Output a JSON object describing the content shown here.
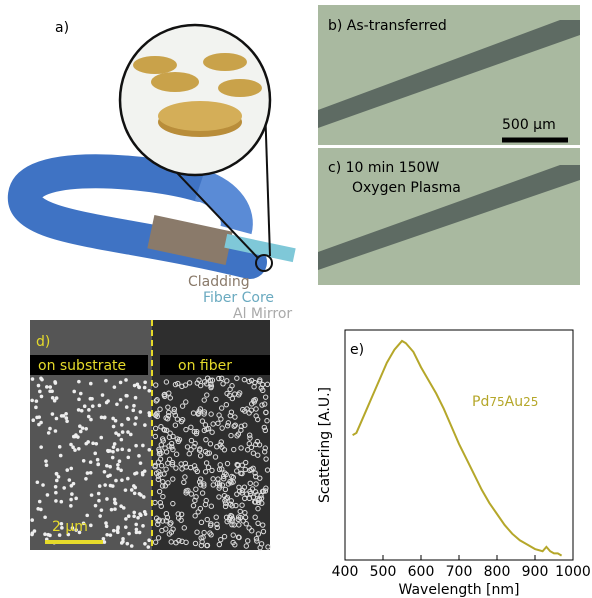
{
  "panels": {
    "a": {
      "label": "a)",
      "cladding": "Cladding",
      "core": "Fiber Core",
      "mirror": "Al Mirror"
    },
    "b": {
      "label": "b)  As-transferred",
      "scale": "500 µm"
    },
    "c": {
      "label": "c)  10 min 150W",
      "label2": "Oxygen Plasma"
    },
    "d": {
      "label": "d)",
      "left": "on substrate",
      "right": "on fiber",
      "scale": "2 µm"
    },
    "e": {
      "label": "e)"
    }
  },
  "chart_data": {
    "type": "line",
    "xlabel": "Wavelength [nm]",
    "ylabel": "Scattering [A.U.]",
    "annotation": [
      "Pd",
      "75",
      "Au",
      "25"
    ],
    "color": "#b5a72a",
    "x": [
      420,
      430,
      440,
      450,
      460,
      470,
      480,
      490,
      500,
      510,
      520,
      530,
      540,
      550,
      560,
      570,
      580,
      600,
      620,
      640,
      660,
      680,
      700,
      720,
      740,
      760,
      780,
      800,
      820,
      840,
      860,
      880,
      900,
      920,
      930,
      940,
      950,
      960,
      970
    ],
    "values": [
      0.57,
      0.58,
      0.62,
      0.66,
      0.7,
      0.74,
      0.78,
      0.82,
      0.86,
      0.9,
      0.93,
      0.96,
      0.98,
      1.0,
      0.99,
      0.97,
      0.95,
      0.88,
      0.82,
      0.76,
      0.69,
      0.61,
      0.53,
      0.46,
      0.39,
      0.32,
      0.26,
      0.21,
      0.16,
      0.12,
      0.09,
      0.07,
      0.05,
      0.04,
      0.06,
      0.04,
      0.03,
      0.03,
      0.02
    ],
    "xlim": [
      400,
      1000
    ],
    "ylim": [
      0,
      1.05
    ],
    "xticks": [
      400,
      500,
      600,
      700,
      800,
      900,
      1000
    ]
  }
}
